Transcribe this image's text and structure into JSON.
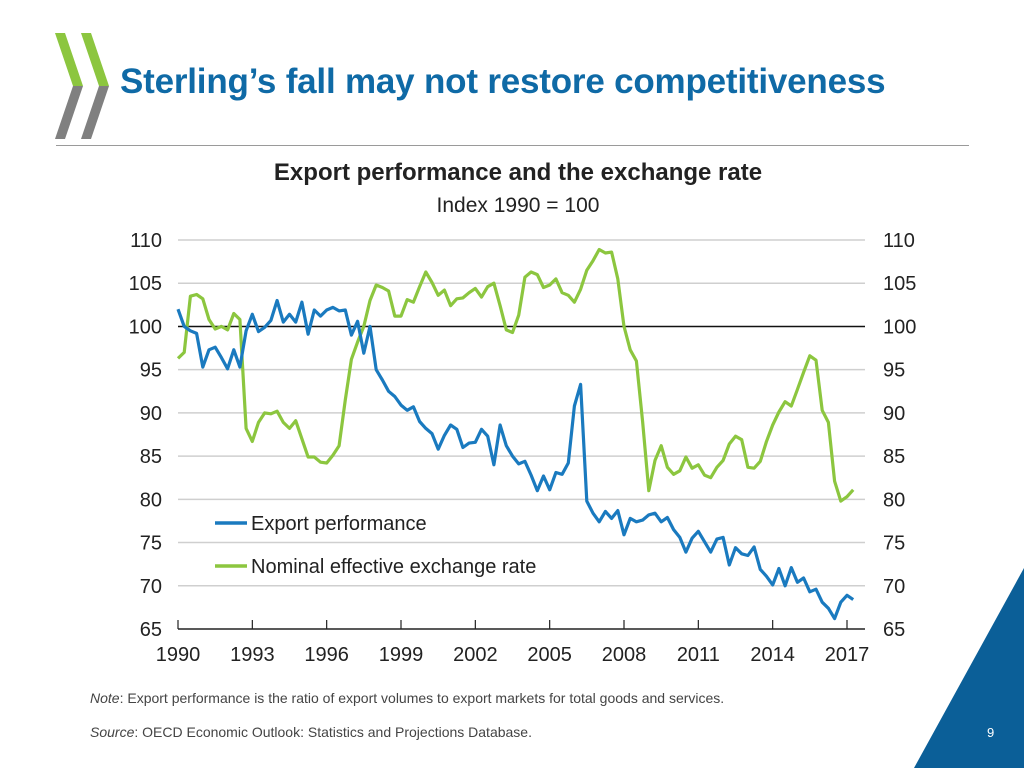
{
  "slide": {
    "title": "Sterling’s fall may not restore competitiveness",
    "note_label": "Note",
    "note_text": ": Export performance is the ratio of export volumes to export markets for total goods and services.",
    "source_label": "Source",
    "source_text": ": OECD Economic Outlook: Statistics and Projections Database.",
    "page_number": "9",
    "colors": {
      "title": "#0f6aa6",
      "logo_green": "#8cc63f",
      "logo_grey": "#808080",
      "corner": "#0b5f98"
    }
  },
  "chart_data": {
    "type": "line",
    "title": "Export performance and the exchange rate",
    "subtitle": "Index 1990 = 100",
    "xlabel": "",
    "ylabel": "",
    "xlim": [
      1990,
      2017.5
    ],
    "ylim": [
      65,
      110
    ],
    "x_ticks": [
      1990,
      1993,
      1996,
      1999,
      2002,
      2005,
      2008,
      2011,
      2014,
      2017
    ],
    "y_ticks": [
      65,
      70,
      75,
      80,
      85,
      90,
      95,
      100,
      105,
      110
    ],
    "y_tick_labels_both_sides": true,
    "reference_line": 100,
    "grid": true,
    "legend_position": "lower-left",
    "series": [
      {
        "name": "Export performance",
        "color": "#1a7abf",
        "x": [
          1990,
          1990.25,
          1990.5,
          1990.75,
          1991,
          1991.25,
          1991.5,
          1991.75,
          1992,
          1992.25,
          1992.5,
          1992.75,
          1993,
          1993.25,
          1993.5,
          1993.75,
          1994,
          1994.25,
          1994.5,
          1994.75,
          1995,
          1995.25,
          1995.5,
          1995.75,
          1996,
          1996.25,
          1996.5,
          1996.75,
          1997,
          1997.25,
          1997.5,
          1997.75,
          1998,
          1998.25,
          1998.5,
          1998.75,
          1999,
          1999.25,
          1999.5,
          1999.75,
          2000,
          2000.25,
          2000.5,
          2000.75,
          2001,
          2001.25,
          2001.5,
          2001.75,
          2002,
          2002.25,
          2002.5,
          2002.75,
          2003,
          2003.25,
          2003.5,
          2003.75,
          2004,
          2004.25,
          2004.5,
          2004.75,
          2005,
          2005.25,
          2005.5,
          2005.75,
          2006,
          2006.25,
          2006.5,
          2006.75,
          2007,
          2007.25,
          2007.5,
          2007.75,
          2008,
          2008.25,
          2008.5,
          2008.75,
          2009,
          2009.25,
          2009.5,
          2009.75,
          2010,
          2010.25,
          2010.5,
          2010.75,
          2011,
          2011.25,
          2011.5,
          2011.75,
          2012,
          2012.25,
          2012.5,
          2012.75,
          2013,
          2013.25,
          2013.5,
          2013.75,
          2014,
          2014.25,
          2014.5,
          2014.75,
          2015,
          2015.25,
          2015.5,
          2015.75,
          2016,
          2016.25,
          2016.5,
          2016.75,
          2017,
          2017.25
        ],
        "values": [
          102,
          100,
          99.5,
          99.2,
          95.3,
          97.3,
          97.6,
          96.4,
          95.1,
          97.3,
          95.3,
          99.5,
          101.4,
          99.4,
          99.9,
          100.7,
          103,
          100.5,
          101.4,
          100.5,
          102.8,
          99.1,
          101.9,
          101.2,
          101.9,
          102.2,
          101.8,
          101.9,
          99,
          100.6,
          96.9,
          100,
          95,
          93.8,
          92.5,
          91.9,
          90.9,
          90.3,
          90.7,
          89,
          88.2,
          87.6,
          85.8,
          87.4,
          88.6,
          88.1,
          86,
          86.5,
          86.6,
          88.1,
          87.3,
          84,
          88.6,
          86.2,
          85,
          84.1,
          84.4,
          82.8,
          81,
          82.7,
          81.1,
          83.1,
          82.9,
          84.2,
          90.8,
          93.3,
          79.8,
          78.4,
          77.4,
          78.6,
          77.8,
          78.7,
          75.9,
          77.8,
          77.4,
          77.6,
          78.2,
          78.4,
          77.4,
          77.9,
          76.5,
          75.6,
          73.9,
          75.5,
          76.3,
          75.1,
          73.9,
          75.4,
          75.6,
          72.4,
          74.4,
          73.7,
          73.5,
          74.5,
          71.9,
          71.1,
          70.1,
          72,
          70,
          72.1,
          70.4,
          70.9,
          69.3,
          69.6,
          68.1,
          67.4,
          66.2,
          68.1,
          68.9,
          68.4
        ]
      },
      {
        "name": "Nominal effective exchange rate",
        "color": "#8cc63f",
        "x": [
          1990,
          1990.25,
          1990.5,
          1990.75,
          1991,
          1991.25,
          1991.5,
          1991.75,
          1992,
          1992.25,
          1992.5,
          1992.75,
          1993,
          1993.25,
          1993.5,
          1993.75,
          1994,
          1994.25,
          1994.5,
          1994.75,
          1995,
          1995.25,
          1995.5,
          1995.75,
          1996,
          1996.25,
          1996.5,
          1996.75,
          1997,
          1997.25,
          1997.5,
          1997.75,
          1998,
          1998.25,
          1998.5,
          1998.75,
          1999,
          1999.25,
          1999.5,
          1999.75,
          2000,
          2000.25,
          2000.5,
          2000.75,
          2001,
          2001.25,
          2001.5,
          2001.75,
          2002,
          2002.25,
          2002.5,
          2002.75,
          2003,
          2003.25,
          2003.5,
          2003.75,
          2004,
          2004.25,
          2004.5,
          2004.75,
          2005,
          2005.25,
          2005.5,
          2005.75,
          2006,
          2006.25,
          2006.5,
          2006.75,
          2007,
          2007.25,
          2007.5,
          2007.75,
          2008,
          2008.25,
          2008.5,
          2008.75,
          2009,
          2009.25,
          2009.5,
          2009.75,
          2010,
          2010.25,
          2010.5,
          2010.75,
          2011,
          2011.25,
          2011.5,
          2011.75,
          2012,
          2012.25,
          2012.5,
          2012.75,
          2013,
          2013.25,
          2013.5,
          2013.75,
          2014,
          2014.25,
          2014.5,
          2014.75,
          2015,
          2015.25,
          2015.5,
          2015.75,
          2016,
          2016.25,
          2016.5,
          2016.75,
          2017,
          2017.25
        ],
        "values": [
          96.3,
          97,
          103.5,
          103.7,
          103.2,
          100.8,
          99.7,
          100,
          99.6,
          101.5,
          100.8,
          88.2,
          86.7,
          88.9,
          90,
          89.9,
          90.2,
          88.9,
          88.2,
          89.1,
          87,
          84.9,
          84.9,
          84.3,
          84.2,
          85.1,
          86.2,
          91.5,
          96.2,
          98.2,
          100,
          103,
          104.8,
          104.5,
          104.1,
          101.2,
          101.2,
          103.1,
          102.8,
          104.6,
          106.3,
          105.1,
          103.6,
          104.2,
          102.4,
          103.2,
          103.3,
          103.9,
          104.4,
          103.4,
          104.6,
          105,
          102.4,
          99.6,
          99.3,
          101.3,
          105.7,
          106.3,
          106,
          104.5,
          104.8,
          105.5,
          103.9,
          103.6,
          102.8,
          104.3,
          106.5,
          107.6,
          108.9,
          108.5,
          108.6,
          105.5,
          100,
          97.3,
          96,
          89,
          81,
          84.5,
          86.2,
          83.7,
          82.9,
          83.3,
          84.9,
          83.6,
          84,
          82.8,
          82.5,
          83.7,
          84.5,
          86.4,
          87.3,
          86.9,
          83.7,
          83.6,
          84.4,
          86.7,
          88.6,
          90.1,
          91.3,
          90.8,
          92.7,
          94.7,
          96.6,
          96.1,
          90.3,
          88.9,
          82.1,
          79.8,
          80.3,
          81.1
        ]
      }
    ]
  }
}
